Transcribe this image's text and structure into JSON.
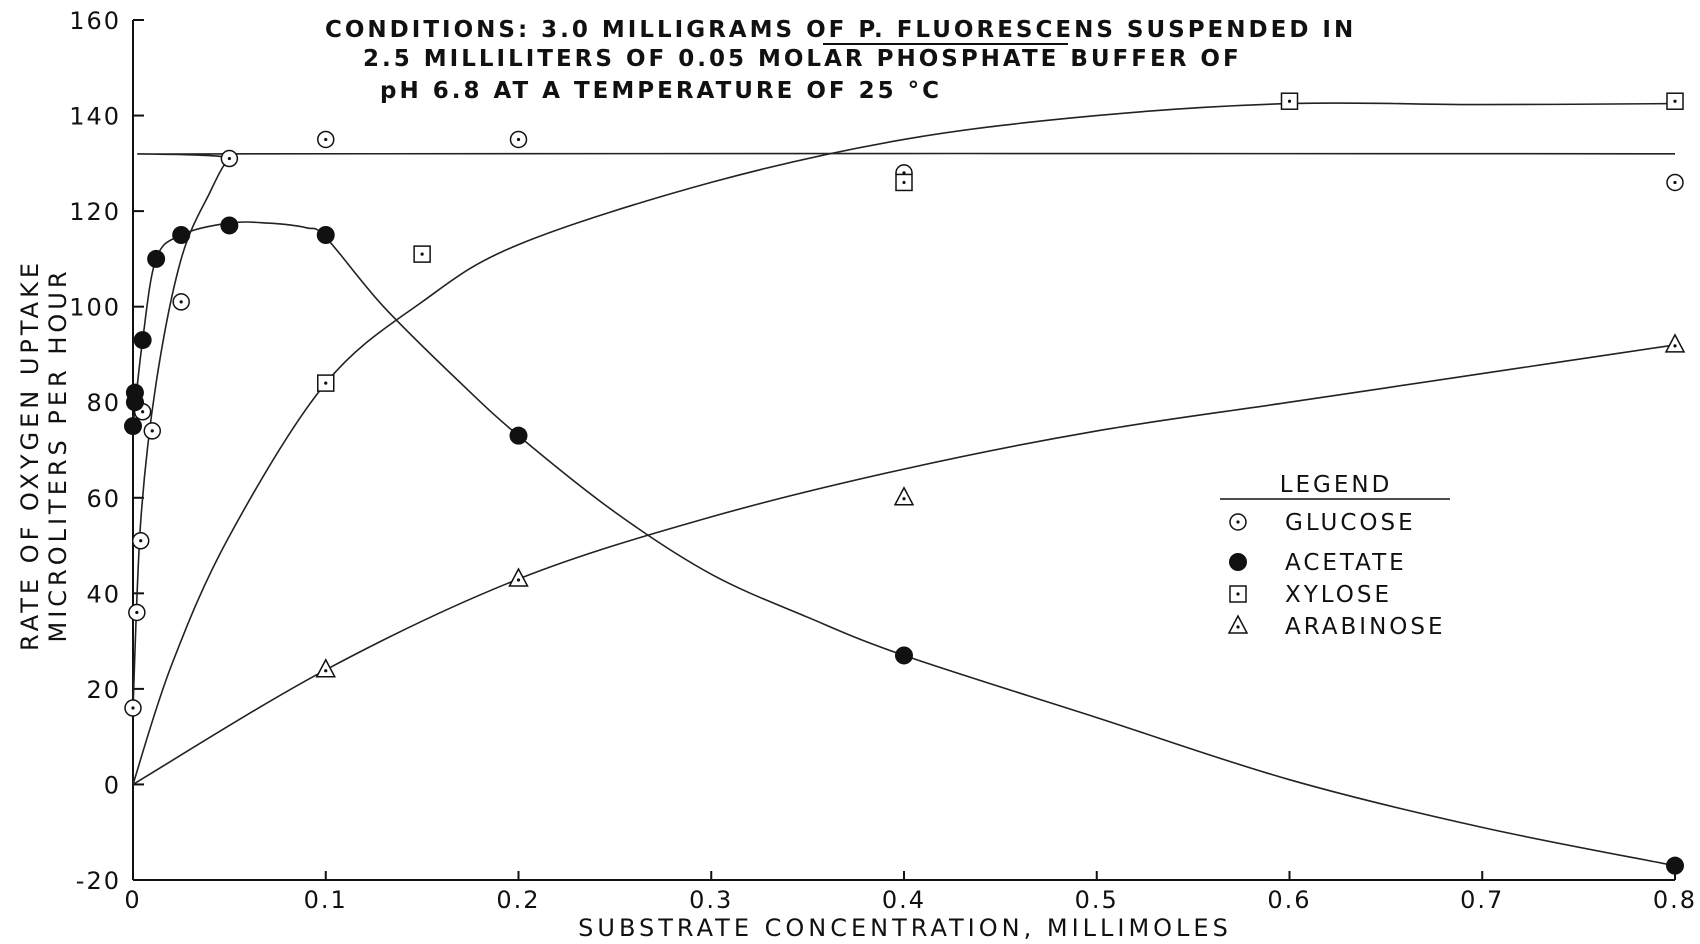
{
  "chart_data": {
    "type": "scatter",
    "conditions": [
      "CONDITIONS: 3.0 MILLIGRAMS OF P. FLUORESCENS SUSPENDED IN",
      "2.5 MILLILITERS OF 0.05 MOLAR PHOSPHATE BUFFER OF",
      "pH 6.8 AT A TEMPERATURE OF 25 °C"
    ],
    "xlabel": "SUBSTRATE CONCENTRATION, MILLIMOLES",
    "ylabel": [
      "RATE OF OXYGEN UPTAKE",
      "MICROLITERS PER HOUR"
    ],
    "xlim": [
      0,
      0.8
    ],
    "ylim": [
      -20,
      160
    ],
    "xticks": [
      0,
      0.1,
      0.2,
      0.3,
      0.4,
      0.5,
      0.6,
      0.7,
      0.8
    ],
    "xtick_labels": [
      "0",
      "0.1",
      "0.2",
      "0.3",
      "0.4",
      "0.5",
      "0.6",
      "0.7",
      "0.8"
    ],
    "yticks": [
      -20,
      0,
      20,
      40,
      60,
      80,
      100,
      120,
      140,
      160
    ],
    "ytick_labels": [
      "-20",
      "0",
      "20",
      "40",
      "60",
      "80",
      "100",
      "120",
      "140",
      "160"
    ],
    "grid": false,
    "legend": {
      "title": "LEGEND",
      "placement": "right-middle",
      "entries": [
        {
          "label": "GLUCOSE",
          "marker": "open-circle-dot"
        },
        {
          "label": "ACETATE",
          "marker": "filled-circle"
        },
        {
          "label": "XYLOSE",
          "marker": "open-square-dot"
        },
        {
          "label": "ARABINOSE",
          "marker": "open-triangle-dot"
        }
      ]
    },
    "series": [
      {
        "name": "GLUCOSE",
        "marker": "open-circle-dot",
        "points": [
          [
            0.0,
            16
          ],
          [
            0.002,
            36
          ],
          [
            0.004,
            51
          ],
          [
            0.005,
            78
          ],
          [
            0.01,
            74
          ],
          [
            0.025,
            101
          ],
          [
            0.05,
            131
          ],
          [
            0.1,
            135
          ],
          [
            0.2,
            135
          ],
          [
            0.4,
            128
          ],
          [
            0.8,
            126
          ]
        ],
        "curve": [
          [
            0.0,
            16
          ],
          [
            0.004,
            55
          ],
          [
            0.012,
            84
          ],
          [
            0.025,
            110
          ],
          [
            0.04,
            124
          ],
          [
            0.05,
            131
          ],
          [
            0.06,
            132
          ],
          [
            0.8,
            132
          ]
        ]
      },
      {
        "name": "ACETATE",
        "marker": "filled-circle",
        "points": [
          [
            0.0,
            75
          ],
          [
            0.001,
            80
          ],
          [
            0.001,
            82
          ],
          [
            0.005,
            93
          ],
          [
            0.012,
            110
          ],
          [
            0.025,
            115
          ],
          [
            0.05,
            117
          ],
          [
            0.1,
            115
          ],
          [
            0.2,
            73
          ],
          [
            0.4,
            27
          ],
          [
            0.8,
            -17
          ]
        ],
        "curve": [
          [
            0.0,
            75
          ],
          [
            0.005,
            93
          ],
          [
            0.012,
            110
          ],
          [
            0.025,
            115
          ],
          [
            0.05,
            117.5
          ],
          [
            0.07,
            117.5
          ],
          [
            0.09,
            116.5
          ],
          [
            0.1,
            114.5
          ],
          [
            0.13,
            100
          ],
          [
            0.17,
            84
          ],
          [
            0.2,
            73
          ],
          [
            0.25,
            57
          ],
          [
            0.3,
            44
          ],
          [
            0.35,
            35
          ],
          [
            0.4,
            27
          ],
          [
            0.5,
            14
          ],
          [
            0.6,
            1
          ],
          [
            0.7,
            -9
          ],
          [
            0.8,
            -17
          ]
        ]
      },
      {
        "name": "XYLOSE",
        "marker": "open-square-dot",
        "points": [
          [
            0.1,
            84
          ],
          [
            0.15,
            111
          ],
          [
            0.4,
            126
          ],
          [
            0.6,
            143
          ],
          [
            0.8,
            143
          ]
        ],
        "curve": [
          [
            0.0,
            0
          ],
          [
            0.02,
            25
          ],
          [
            0.05,
            52
          ],
          [
            0.1,
            84
          ],
          [
            0.15,
            101
          ],
          [
            0.2,
            113
          ],
          [
            0.3,
            126
          ],
          [
            0.4,
            135
          ],
          [
            0.5,
            140
          ],
          [
            0.6,
            142.5
          ],
          [
            0.7,
            142.3
          ],
          [
            0.8,
            142.5
          ]
        ]
      },
      {
        "name": "ARABINOSE",
        "marker": "open-triangle-dot",
        "points": [
          [
            0.1,
            24
          ],
          [
            0.2,
            43
          ],
          [
            0.4,
            60
          ],
          [
            0.8,
            92
          ]
        ],
        "curve": [
          [
            0.0,
            0
          ],
          [
            0.1,
            24
          ],
          [
            0.2,
            43
          ],
          [
            0.3,
            56
          ],
          [
            0.4,
            66
          ],
          [
            0.5,
            74
          ],
          [
            0.6,
            80
          ],
          [
            0.7,
            86
          ],
          [
            0.8,
            92
          ]
        ]
      }
    ]
  }
}
